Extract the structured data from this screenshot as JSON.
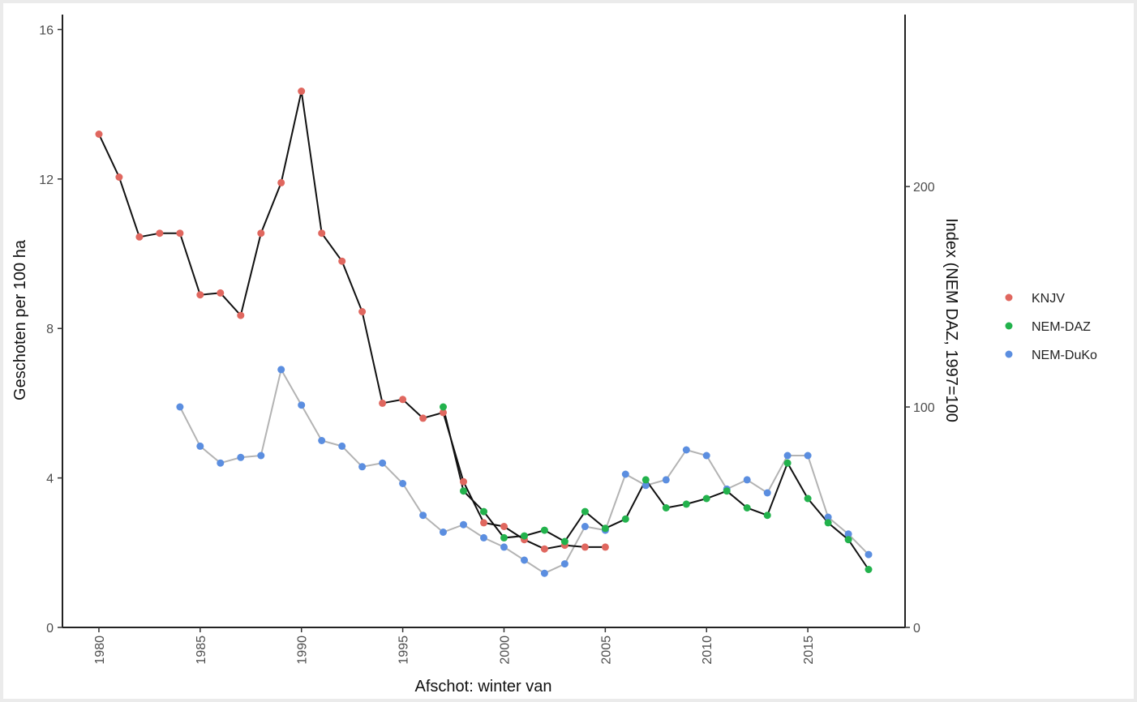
{
  "chart_data": {
    "type": "line",
    "xlabel": "Afschot: winter van",
    "ylabel": "Geschoten per 100 ha",
    "y2label": "Index (NEM DAZ, 1997=100",
    "xlim": [
      1978.2,
      2019.8
    ],
    "ylim": [
      0,
      16.4
    ],
    "y2lim": [
      0,
      278
    ],
    "x_ticks": [
      1980,
      1985,
      1990,
      1995,
      2000,
      2005,
      2010,
      2015
    ],
    "y_ticks": [
      0,
      4,
      8,
      12,
      16
    ],
    "y2_ticks": [
      0,
      100,
      200
    ],
    "grid": false,
    "legend_position": "right",
    "series": [
      {
        "name": "KNJV",
        "color": "#e0675f",
        "line_color": "#111111",
        "x": [
          1980,
          1981,
          1982,
          1983,
          1984,
          1985,
          1986,
          1987,
          1988,
          1989,
          1990,
          1991,
          1992,
          1993,
          1994,
          1995,
          1996,
          1997,
          1998,
          1999,
          2000,
          2001,
          2002,
          2003,
          2004,
          2005
        ],
        "y": [
          13.2,
          12.05,
          10.45,
          10.55,
          10.55,
          8.9,
          8.95,
          8.35,
          10.55,
          11.9,
          14.35,
          10.55,
          9.8,
          8.45,
          6.0,
          6.1,
          5.6,
          5.75,
          3.9,
          2.8,
          2.7,
          2.35,
          2.1,
          2.2,
          2.15,
          2.15
        ]
      },
      {
        "name": "NEM-DAZ",
        "color": "#22b24c",
        "line_color": "#111111",
        "x": [
          1997,
          1998,
          1999,
          2000,
          2001,
          2002,
          2003,
          2004,
          2005,
          2006,
          2007,
          2008,
          2009,
          2010,
          2011,
          2012,
          2013,
          2014,
          2015,
          2016,
          2017,
          2018
        ],
        "y": [
          5.9,
          3.65,
          3.1,
          2.4,
          2.45,
          2.6,
          2.3,
          3.1,
          2.65,
          2.9,
          3.95,
          3.2,
          3.3,
          3.45,
          3.65,
          3.2,
          3.0,
          4.4,
          3.45,
          2.8,
          2.35,
          1.55
        ]
      },
      {
        "name": "NEM-DuKo",
        "color": "#5b8ee0",
        "line_color": "#b3b3b3",
        "x": [
          1984,
          1985,
          1986,
          1987,
          1988,
          1989,
          1990,
          1991,
          1992,
          1993,
          1994,
          1995,
          1996,
          1997,
          1998,
          1999,
          2000,
          2001,
          2002,
          2003,
          2004,
          2005,
          2006,
          2007,
          2008,
          2009,
          2010,
          2011,
          2012,
          2013,
          2014,
          2015,
          2016,
          2017,
          2018
        ],
        "y": [
          5.9,
          4.85,
          4.4,
          4.55,
          4.6,
          6.9,
          5.95,
          5.0,
          4.85,
          4.3,
          4.4,
          3.85,
          3.0,
          2.55,
          2.75,
          2.4,
          2.15,
          1.8,
          1.45,
          1.7,
          2.7,
          2.6,
          4.1,
          3.8,
          3.95,
          4.75,
          4.6,
          3.7,
          3.95,
          3.6,
          4.6,
          4.6,
          2.95,
          2.5,
          1.95
        ]
      }
    ]
  }
}
